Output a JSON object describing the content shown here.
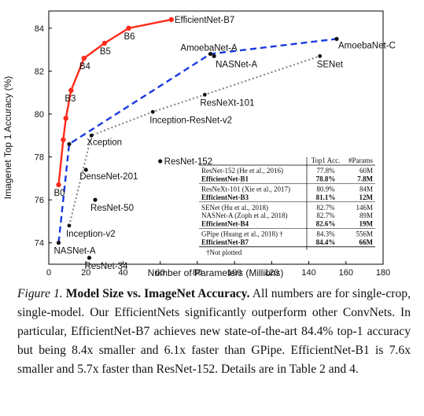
{
  "chart_data": {
    "type": "scatter",
    "title": "",
    "xlabel": "Number of Parameters (Millions)",
    "ylabel": "Imagenet Top 1 Accuracy (%)",
    "xlim": [
      0,
      180
    ],
    "ylim": [
      73.0,
      84.8
    ],
    "xticks": [
      0,
      20,
      40,
      60,
      80,
      100,
      120,
      140,
      160,
      180
    ],
    "yticks": [
      74,
      76,
      78,
      80,
      82,
      84
    ],
    "grid": false,
    "series": [
      {
        "kind": "line",
        "color": "#ff2a1a",
        "style": "solid",
        "points": [
          {
            "x": 5.3,
            "y": 76.7,
            "label": "B0"
          },
          {
            "x": 7.8,
            "y": 78.8,
            "label": ""
          },
          {
            "x": 9.2,
            "y": 79.8,
            "label": ""
          },
          {
            "x": 12,
            "y": 81.1,
            "label": "B3"
          },
          {
            "x": 19,
            "y": 82.6,
            "label": "B4"
          },
          {
            "x": 30,
            "y": 83.3,
            "label": "B5"
          },
          {
            "x": 43,
            "y": 84.0,
            "label": "B6"
          },
          {
            "x": 66,
            "y": 84.4,
            "label": "EfficientNet-B7"
          }
        ]
      },
      {
        "kind": "line",
        "color": "#1a3ae0",
        "style": "dashed",
        "points": [
          {
            "x": 5.3,
            "y": 74.0,
            "label": "NASNet-A"
          },
          {
            "x": 11,
            "y": 78.6,
            "label": ""
          },
          {
            "x": 87,
            "y": 82.8,
            "label": "AmoebaNet-A"
          },
          {
            "x": 155,
            "y": 83.5,
            "label": "AmoebaNet-C"
          }
        ]
      },
      {
        "kind": "line",
        "color": "#888888",
        "style": "dotted",
        "points": [
          {
            "x": 11,
            "y": 74.8,
            "label": "Inception-v2"
          },
          {
            "x": 23,
            "y": 79.0,
            "label": "Xception"
          },
          {
            "x": 56,
            "y": 80.1,
            "label": "Inception-ResNet-v2"
          },
          {
            "x": 84,
            "y": 80.9,
            "label": "ResNeXt-101"
          },
          {
            "x": 146,
            "y": 82.7,
            "label": "SENet"
          }
        ]
      },
      {
        "kind": "points",
        "color": "#111111",
        "style": "none",
        "points": [
          {
            "x": 20,
            "y": 77.4,
            "label": "DenseNet-201"
          },
          {
            "x": 25,
            "y": 76.0,
            "label": "ResNet-50"
          },
          {
            "x": 21.8,
            "y": 73.3,
            "label": "ResNet-34"
          },
          {
            "x": 60,
            "y": 77.8,
            "label": "ResNet-152"
          },
          {
            "x": 89,
            "y": 82.7,
            "label": "NASNet-A"
          }
        ]
      }
    ],
    "table": {
      "headers": [
        "",
        "Top1 Acc.",
        "#Params"
      ],
      "groups": [
        [
          {
            "name": "ResNet-152 (He et al., 2016)",
            "acc": "77.8%",
            "params": "60M",
            "bold": false
          },
          {
            "name": "EfficientNet-B1",
            "acc": "78.8%",
            "params": "7.8M",
            "bold": true
          }
        ],
        [
          {
            "name": "ResNeXt-101 (Xie et al., 2017)",
            "acc": "80.9%",
            "params": "84M",
            "bold": false
          },
          {
            "name": "EfficientNet-B3",
            "acc": "81.1%",
            "params": "12M",
            "bold": true
          }
        ],
        [
          {
            "name": "SENet (Hu et al., 2018)",
            "acc": "82.7%",
            "params": "146M",
            "bold": false
          },
          {
            "name": "NASNet-A (Zoph et al., 2018)",
            "acc": "82.7%",
            "params": "89M",
            "bold": false
          },
          {
            "name": "EfficientNet-B4",
            "acc": "82.6%",
            "params": "19M",
            "bold": true
          }
        ],
        [
          {
            "name": "GPipe (Huang et al., 2018) †",
            "acc": "84.3%",
            "params": "556M",
            "bold": false
          },
          {
            "name": "EfficientNet-B7",
            "acc": "84.4%",
            "params": "66M",
            "bold": true
          }
        ]
      ],
      "footnote": "†Not plotted"
    }
  },
  "caption": {
    "figure_label": "Figure 1.",
    "bold_title": "Model Size vs. ImageNet Accuracy.",
    "text": "All numbers are for single-crop, single-model. Our EfficientNets significantly outperform other ConvNets. In particular, EfficientNet-B7 achieves new state-of-the-art 84.4% top-1 accuracy but being 8.4x smaller and 6.1x faster than GPipe. EfficientNet-B1 is 7.6x smaller and 5.7x faster than ResNet-152. Details are in Table 2 and 4."
  }
}
